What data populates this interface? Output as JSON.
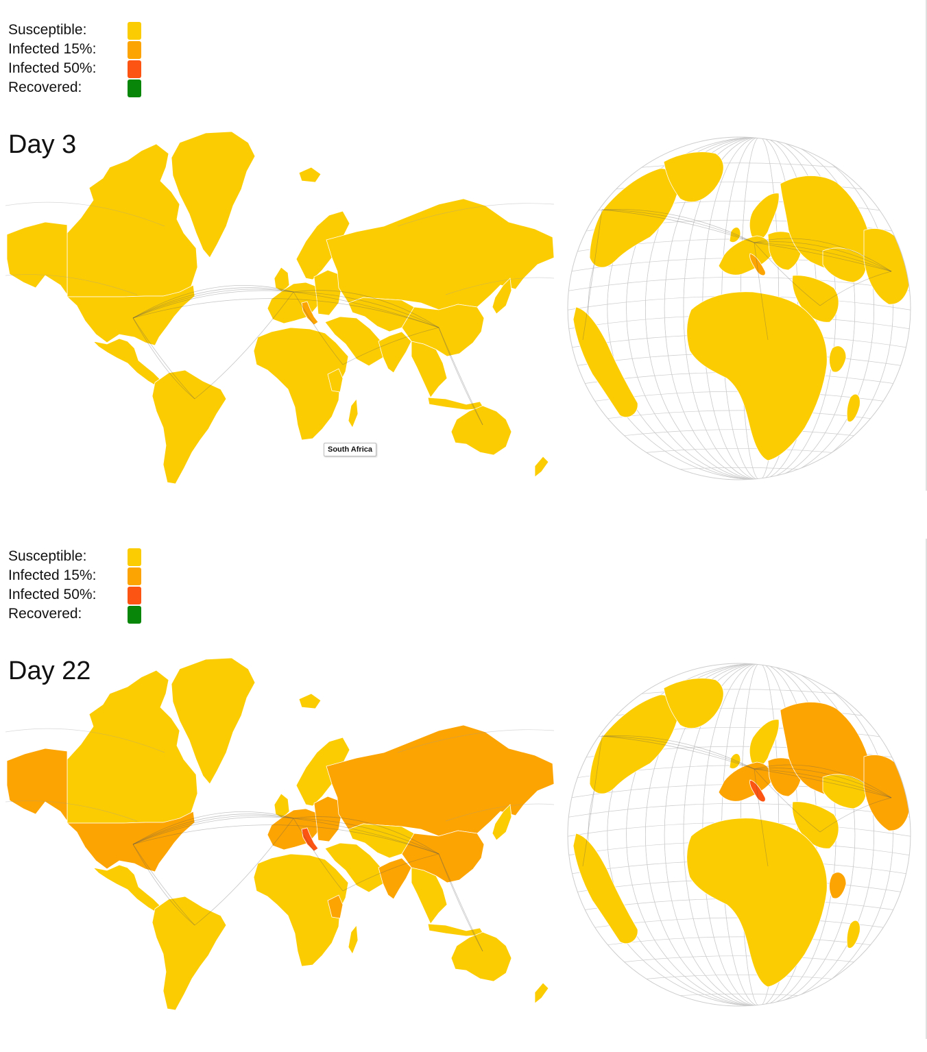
{
  "colors": {
    "susceptible": "#FCCC02",
    "infected15": "#FCA402",
    "infected50": "#FC5412",
    "recovered": "#08860A",
    "water": "#ffffff",
    "border": "#ffffff",
    "route": "#555555",
    "graticule": "#cccccc"
  },
  "legend": [
    {
      "label": "Susceptible:",
      "color_key": "susceptible"
    },
    {
      "label": "Infected 15%:",
      "color_key": "infected15"
    },
    {
      "label": "Infected 50%:",
      "color_key": "infected50"
    },
    {
      "label": "Recovered:",
      "color_key": "recovered"
    }
  ],
  "panels": [
    {
      "title": "Day 3",
      "tooltip": "South Africa",
      "region_states": {
        "north_america": "susceptible",
        "usa": "susceptible",
        "alaska": "susceptible",
        "canada": "susceptible",
        "greenland": "susceptible",
        "central_america": "susceptible",
        "south_america": "susceptible",
        "western_europe": "susceptible",
        "italy": "infected15",
        "scandinavia": "susceptible",
        "eastern_europe": "susceptible",
        "russia": "susceptible",
        "middle_east": "susceptible",
        "central_asia": "susceptible",
        "china": "susceptible",
        "india": "susceptible",
        "southeast_asia": "susceptible",
        "japan": "susceptible",
        "africa": "susceptible",
        "kenya": "susceptible",
        "madagascar": "susceptible",
        "australia": "susceptible",
        "new_zealand": "susceptible",
        "iceland": "susceptible",
        "uk": "susceptible"
      }
    },
    {
      "title": "Day 22",
      "tooltip": "",
      "region_states": {
        "north_america": "susceptible",
        "usa": "infected15",
        "alaska": "infected15",
        "canada": "susceptible",
        "greenland": "susceptible",
        "central_america": "susceptible",
        "south_america": "susceptible",
        "western_europe": "infected15",
        "italy": "infected50",
        "scandinavia": "susceptible",
        "eastern_europe": "infected15",
        "russia": "infected15",
        "middle_east": "susceptible",
        "central_asia": "susceptible",
        "china": "infected15",
        "india": "infected15",
        "southeast_asia": "susceptible",
        "japan": "susceptible",
        "africa": "susceptible",
        "kenya": "infected15",
        "madagascar": "susceptible",
        "australia": "susceptible",
        "new_zealand": "susceptible",
        "iceland": "susceptible",
        "uk": "susceptible"
      }
    }
  ]
}
